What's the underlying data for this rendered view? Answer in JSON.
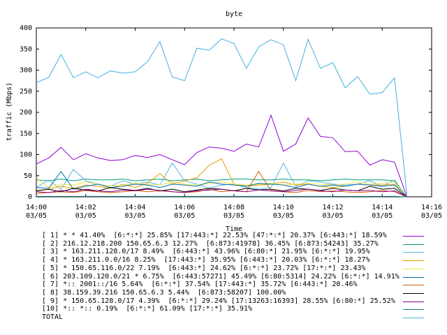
{
  "chart_data": {
    "type": "line",
    "title": "byte",
    "ylabel": "traffic (Mbps)",
    "xlabel": "Time",
    "ylim": [
      0,
      400
    ],
    "yticks": [
      0,
      50,
      100,
      150,
      200,
      250,
      300,
      350,
      400
    ],
    "xlim": [
      "14:00",
      "14:16"
    ],
    "xticks": [
      {
        "time": "14:00",
        "date": "03/05"
      },
      {
        "time": "14:02",
        "date": "03/05"
      },
      {
        "time": "14:04",
        "date": "03/05"
      },
      {
        "time": "14:06",
        "date": "03/05"
      },
      {
        "time": "14:08",
        "date": "03/05"
      },
      {
        "time": "14:10",
        "date": "03/05"
      },
      {
        "time": "14:12",
        "date": "03/05"
      },
      {
        "time": "14:14",
        "date": "03/05"
      },
      {
        "time": "14:16",
        "date": "03/05"
      }
    ],
    "grid": false,
    "legend_position": "bottom",
    "x": [
      "14:00:00",
      "14:00:30",
      "14:01:00",
      "14:01:30",
      "14:02:00",
      "14:02:30",
      "14:03:00",
      "14:03:30",
      "14:04:00",
      "14:04:30",
      "14:05:00",
      "14:05:30",
      "14:06:00",
      "14:06:30",
      "14:07:00",
      "14:07:30",
      "14:08:00",
      "14:08:30",
      "14:09:00",
      "14:09:30",
      "14:10:00",
      "14:10:30",
      "14:11:00",
      "14:11:30",
      "14:12:00",
      "14:12:30",
      "14:13:00",
      "14:13:30",
      "14:14:00",
      "14:14:30",
      "14:15:00"
    ],
    "series": [
      {
        "name": "[ 1] * * 41.40%  [6:*:*] 25.85% [17:443:*] 22.53% [47:*:*] 20.37% [6:443:*] 18.59%",
        "color": "#9400d3",
        "values": [
          78,
          92,
          117,
          88,
          102,
          92,
          86,
          88,
          98,
          93,
          100,
          88,
          76,
          105,
          118,
          115,
          108,
          125,
          118,
          193,
          108,
          125,
          187,
          143,
          140,
          107,
          108,
          75,
          88,
          82,
          0
        ]
      },
      {
        "name": "[ 2] 216.12.218.200 150.65.6.3 12.27%  [6:873:41978] 36.45% [6:873:54243] 35.27%",
        "color": "#009e73",
        "values": [
          40,
          38,
          42,
          38,
          42,
          40,
          40,
          42,
          38,
          40,
          42,
          38,
          40,
          42,
          38,
          40,
          42,
          42,
          40,
          40,
          42,
          40,
          40,
          38,
          40,
          42,
          40,
          40,
          40,
          38,
          0
        ]
      },
      {
        "name": "[ 3] * 163.211.128.0/17 8.49%  [6:443:*] 43.96% [6:80:*] 21.95% [6:*:*] 19.95%",
        "color": "#56b4e9",
        "values": [
          22,
          40,
          18,
          65,
          38,
          30,
          25,
          38,
          30,
          35,
          28,
          80,
          38,
          30,
          20,
          28,
          30,
          22,
          18,
          22,
          80,
          25,
          38,
          35,
          30,
          28,
          30,
          38,
          25,
          40,
          0
        ]
      },
      {
        "name": "[ 4] * 163.211.0.0/16 8.25%  [17:443:*] 35.95% [6:443:*] 20.03% [6:*:*] 18.27%",
        "color": "#e69f00",
        "values": [
          15,
          18,
          25,
          20,
          28,
          25,
          20,
          30,
          22,
          32,
          55,
          30,
          38,
          45,
          75,
          90,
          30,
          25,
          28,
          30,
          35,
          28,
          30,
          25,
          22,
          25,
          30,
          28,
          28,
          30,
          0
        ]
      },
      {
        "name": "[ 5] * 150.65.116.0/22 7.19%  [6:443:*] 24.62% [6:*:*] 23.72% [17:*:*] 23.43%",
        "color": "#f0e442",
        "values": [
          45,
          22,
          30,
          28,
          35,
          30,
          25,
          28,
          32,
          30,
          28,
          35,
          30,
          28,
          32,
          35,
          30,
          28,
          30,
          32,
          28,
          30,
          32,
          30,
          28,
          30,
          35,
          30,
          32,
          35,
          0
        ]
      },
      {
        "name": "[ 6] 203.109.120.0/21 * 6.75%  [6:443:57271] 45.49% [6:80:5314] 24.22% [6:*:*] 14.91%",
        "color": "#0072b2",
        "values": [
          22,
          20,
          60,
          18,
          25,
          30,
          22,
          25,
          30,
          28,
          22,
          30,
          28,
          25,
          35,
          30,
          28,
          25,
          32,
          30,
          28,
          22,
          30,
          25,
          28,
          25,
          30,
          28,
          25,
          28,
          0
        ]
      },
      {
        "name": "[ 7] *:: 2001::/16 5.64%  [6:*:*] 37.54% [17:443:*] 35.72% [6:443:*] 20.46%",
        "color": "#d55e00",
        "values": [
          8,
          10,
          12,
          10,
          15,
          12,
          10,
          12,
          15,
          12,
          14,
          12,
          10,
          12,
          18,
          12,
          15,
          12,
          60,
          15,
          12,
          10,
          15,
          12,
          14,
          12,
          10,
          12,
          15,
          12,
          0
        ]
      },
      {
        "name": "[ 8] 38.159.39.216 150.65.6.3 5.44%  [6:873:58207] 100.00%",
        "color": "#000000",
        "values": [
          14,
          18,
          12,
          20,
          16,
          14,
          22,
          18,
          15,
          20,
          14,
          18,
          12,
          16,
          20,
          18,
          14,
          20,
          16,
          18,
          14,
          20,
          18,
          15,
          20,
          16,
          14,
          25,
          18,
          20,
          0
        ]
      },
      {
        "name": "[ 9] * 150.65.128.0/17 4.39%  [6:*:*] 29.24% [17:13263:16393] 28.55% [6:80:*] 25.52%",
        "color": "#8b008b",
        "values": [
          12,
          10,
          15,
          12,
          18,
          14,
          12,
          16,
          14,
          18,
          15,
          12,
          10,
          14,
          16,
          18,
          14,
          12,
          16,
          14,
          12,
          15,
          18,
          14,
          12,
          16,
          14,
          15,
          12,
          14,
          0
        ]
      },
      {
        "name": "[10] *:: *:: 0.19%  [6:*:*] 61.09% [17:*:*] 35.91%",
        "color": "#1b7f86",
        "values": [
          1,
          1,
          1,
          1,
          1,
          1,
          1,
          1,
          1,
          1,
          1,
          1,
          1,
          1,
          1,
          1,
          1,
          1,
          1,
          1,
          1,
          1,
          1,
          1,
          1,
          1,
          1,
          1,
          1,
          1,
          0
        ]
      },
      {
        "name": "TOTAL",
        "color": "#45b0e0",
        "values": [
          270,
          283,
          337,
          282,
          296,
          282,
          298,
          293,
          296,
          320,
          368,
          284,
          275,
          352,
          347,
          374,
          363,
          304,
          355,
          372,
          360,
          275,
          373,
          304,
          318,
          258,
          285,
          243,
          247,
          282,
          5
        ]
      }
    ]
  }
}
